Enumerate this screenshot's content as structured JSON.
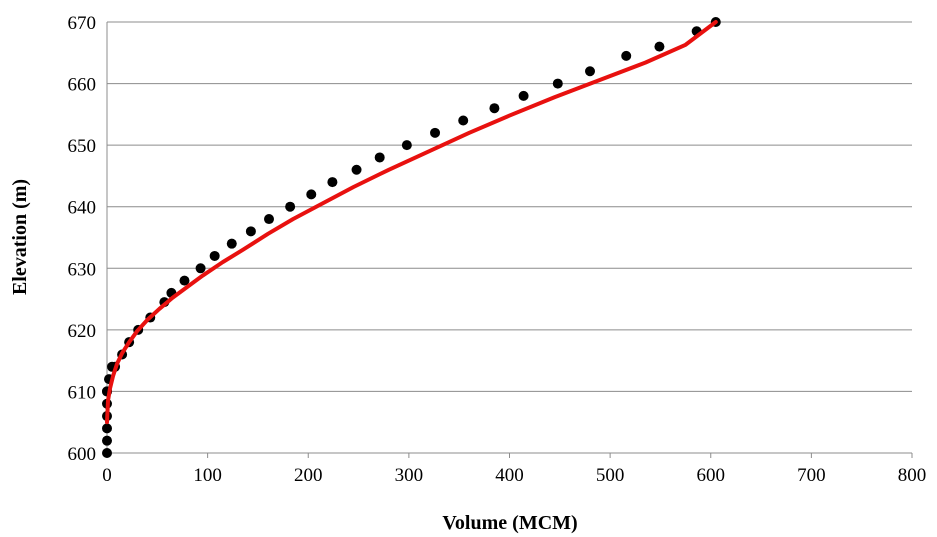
{
  "chart_data": {
    "type": "scatter",
    "xlabel": "Volume (MCM)",
    "ylabel": "Elevation (m)",
    "xlim": [
      0,
      800
    ],
    "ylim": [
      600,
      670
    ],
    "x_ticks": [
      "0",
      "100",
      "200",
      "300",
      "400",
      "500",
      "600",
      "700",
      "800"
    ],
    "y_ticks": [
      "600",
      "610",
      "620",
      "630",
      "640",
      "650",
      "660",
      "670"
    ],
    "grid": "horizontal",
    "legend": "none",
    "series": [
      {
        "kind": "points",
        "color": "#000000",
        "x": [
          0,
          0,
          0,
          0,
          0,
          0,
          0,
          2,
          5,
          8,
          15,
          22,
          31,
          43,
          57,
          64,
          77,
          93,
          107,
          124,
          143,
          161,
          182,
          203,
          224,
          248,
          271,
          298,
          326,
          354,
          385,
          414,
          448,
          480,
          516,
          549,
          586,
          605
        ],
        "y": [
          600,
          602,
          604,
          606,
          608,
          610,
          610,
          612,
          614,
          614,
          616,
          618,
          620,
          622,
          624.5,
          626,
          628,
          630,
          632,
          634,
          636,
          638,
          640,
          642,
          644,
          646,
          648,
          650,
          652,
          654,
          656,
          658,
          660,
          662,
          664.5,
          666,
          668.5,
          670
        ]
      },
      {
        "kind": "fit-line",
        "color": "#e8110f",
        "x": [
          0,
          1,
          3,
          6,
          10,
          15,
          22,
          30,
          40,
          52,
          65,
          80,
          95,
          115,
          135,
          160,
          185,
          215,
          245,
          280,
          320,
          360,
          400,
          445,
          490,
          535,
          575,
          605
        ],
        "y": [
          605,
          608.5,
          610.5,
          612.5,
          614.5,
          616.2,
          618,
          619.8,
          621.6,
          623.4,
          625.2,
          627,
          628.8,
          631,
          633,
          635.6,
          638,
          640.6,
          643.2,
          646,
          649,
          652,
          654.8,
          657.8,
          660.6,
          663.4,
          666.3,
          670
        ]
      }
    ]
  }
}
